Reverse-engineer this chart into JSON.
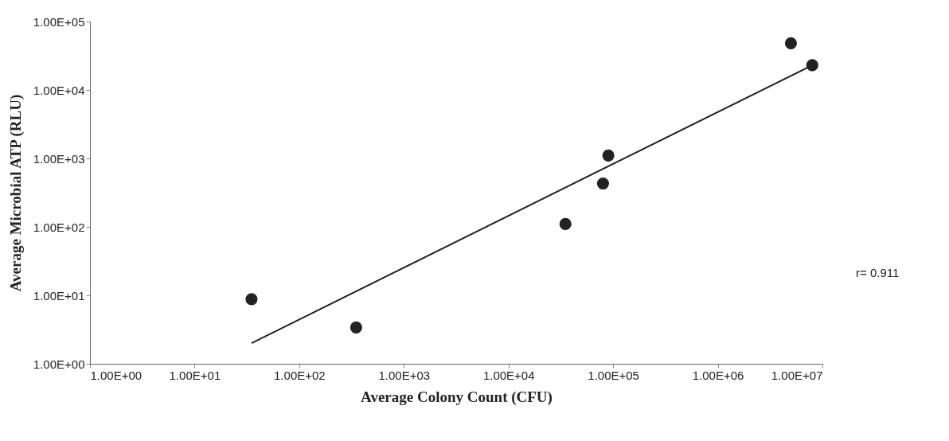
{
  "chart_data": {
    "type": "scatter",
    "xlabel": "Average Colony Count (CFU)",
    "ylabel": "Average Microbial ATP (RLU)",
    "log": "xy",
    "grid": false,
    "marker": "circle",
    "xlim": [
      1,
      10000000
    ],
    "ylim": [
      1,
      100000
    ],
    "xticks": [
      {
        "value": 1,
        "label": "1.00E+00"
      },
      {
        "value": 10,
        "label": "1.00E+01"
      },
      {
        "value": 100,
        "label": "1.00E+02"
      },
      {
        "value": 1000,
        "label": "1.00E+03"
      },
      {
        "value": 10000,
        "label": "1.00E+04"
      },
      {
        "value": 100000,
        "label": "1.00E+05"
      },
      {
        "value": 1000000,
        "label": "1.00E+06"
      },
      {
        "value": 10000000,
        "label": "1.00E+07"
      }
    ],
    "yticks": [
      {
        "value": 1,
        "label": "1.00E+00"
      },
      {
        "value": 10,
        "label": "1.00E+01"
      },
      {
        "value": 100,
        "label": "1.00E+02"
      },
      {
        "value": 1000,
        "label": "1.00E+03"
      },
      {
        "value": 10000,
        "label": "1.00E+04"
      },
      {
        "value": 100000,
        "label": "1.00E+05"
      }
    ],
    "series": [
      {
        "color": "#222222",
        "x": [
          35,
          350,
          35000,
          80000,
          90000,
          5000000,
          8000000
        ],
        "values": [
          8.8,
          3.4,
          110,
          430,
          1100,
          48000,
          23000
        ]
      },
      {
        "type": "line",
        "color": "#222222",
        "line_style": "solid",
        "marker": "none",
        "x": [
          35,
          8000000
        ],
        "values": [
          2.0,
          23000
        ]
      }
    ],
    "annotations": [
      "r= 0.911"
    ]
  }
}
